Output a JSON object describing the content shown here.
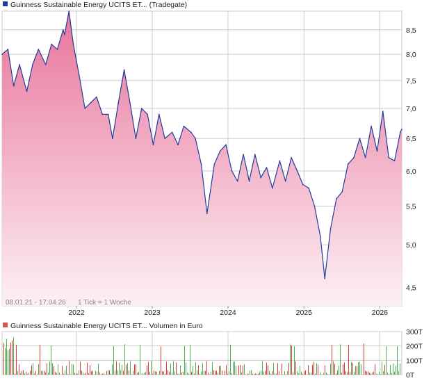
{
  "colors": {
    "price_line": "#1f3c9a",
    "area_top": "#e8759b",
    "area_bottom": "#fdf0f5",
    "vol_up": "#4caf50",
    "vol_down": "#e53935",
    "grid": "#cccccc",
    "legend_blue": "#1a3a9e",
    "legend_red": "#d9534f"
  },
  "top_panel": {
    "legend_text": "Guinness Sustainable Energy UCITS ET... (Tradegate)",
    "period_text": "08.01.21 - 17.04.26",
    "tick_text": "1 Tick = 1 Woche"
  },
  "bottom_panel": {
    "legend_text": "Guinness Sustainable Energy UCITS ET... Volumen in Euro"
  },
  "chart_data": [
    {
      "type": "area",
      "title": "Guinness Sustainable Energy UCITS ET... (Tradegate)",
      "x_range": [
        "2021-01-08",
        "2026-04-17"
      ],
      "x_tick_labels": [
        "2022",
        "2023",
        "2024",
        "2025",
        "2026"
      ],
      "y_tick_labels": [
        "4,5",
        "5,0",
        "5,5",
        "6,0",
        "6,5",
        "7,0",
        "7,5",
        "8,0",
        "8,5"
      ],
      "y_scale": "log",
      "ylim": [
        4.3,
        8.9
      ],
      "grid": true,
      "series": [
        {
          "x": [
            "2021-01-08",
            "2021-02-05",
            "2021-03-05",
            "2021-04-02",
            "2021-05-07",
            "2021-06-04",
            "2021-07-02",
            "2021-08-06",
            "2021-09-03",
            "2021-10-01",
            "2021-10-29",
            "2021-11-05",
            "2021-11-26",
            "2021-12-17",
            "2022-01-14",
            "2022-02-11",
            "2022-03-11",
            "2022-04-08",
            "2022-05-06",
            "2022-06-03",
            "2022-06-24",
            "2022-07-22",
            "2022-08-19",
            "2022-09-16",
            "2022-10-14",
            "2022-11-11",
            "2022-12-09",
            "2023-01-06",
            "2023-02-03",
            "2023-03-03",
            "2023-04-07",
            "2023-05-05",
            "2023-06-02",
            "2023-07-07",
            "2023-07-28",
            "2023-08-25",
            "2023-09-22",
            "2023-10-27",
            "2023-11-24",
            "2023-12-22",
            "2024-01-19",
            "2024-02-16",
            "2024-03-15",
            "2024-04-12",
            "2024-05-10",
            "2024-06-07",
            "2024-07-05",
            "2024-08-02",
            "2024-09-06",
            "2024-10-04",
            "2024-11-01",
            "2024-11-29",
            "2024-12-27",
            "2025-01-24",
            "2025-02-21",
            "2025-03-21",
            "2025-04-11",
            "2025-05-09",
            "2025-06-06",
            "2025-07-04",
            "2025-08-01",
            "2025-08-29",
            "2025-09-26",
            "2025-10-24",
            "2025-11-21",
            "2025-12-19",
            "2026-01-16",
            "2026-02-13",
            "2026-03-13",
            "2026-04-10",
            "2026-04-17"
          ],
          "values": [
            8.0,
            8.1,
            7.4,
            7.8,
            7.3,
            7.8,
            8.1,
            7.8,
            8.2,
            8.1,
            8.5,
            8.4,
            8.9,
            8.2,
            7.6,
            7.0,
            7.1,
            7.2,
            6.9,
            6.9,
            6.5,
            7.1,
            7.7,
            7.1,
            6.5,
            7.0,
            6.9,
            6.4,
            6.9,
            6.5,
            6.6,
            6.4,
            6.7,
            6.6,
            6.5,
            6.1,
            5.4,
            6.1,
            6.3,
            6.4,
            6.0,
            5.85,
            6.25,
            5.85,
            6.25,
            5.9,
            6.05,
            5.75,
            6.15,
            5.85,
            6.2,
            6.0,
            5.8,
            5.75,
            5.5,
            5.1,
            4.6,
            5.2,
            5.6,
            5.7,
            6.1,
            6.2,
            6.5,
            6.2,
            6.7,
            6.3,
            6.95,
            6.2,
            6.15,
            6.6,
            6.65
          ]
        }
      ]
    },
    {
      "type": "bar",
      "title": "Guinness Sustainable Energy UCITS ET... Volumen in Euro",
      "y_tick_labels": [
        "0T",
        "100T",
        "200T",
        "300T"
      ],
      "ylim": [
        0,
        300
      ],
      "grid": true
    }
  ]
}
